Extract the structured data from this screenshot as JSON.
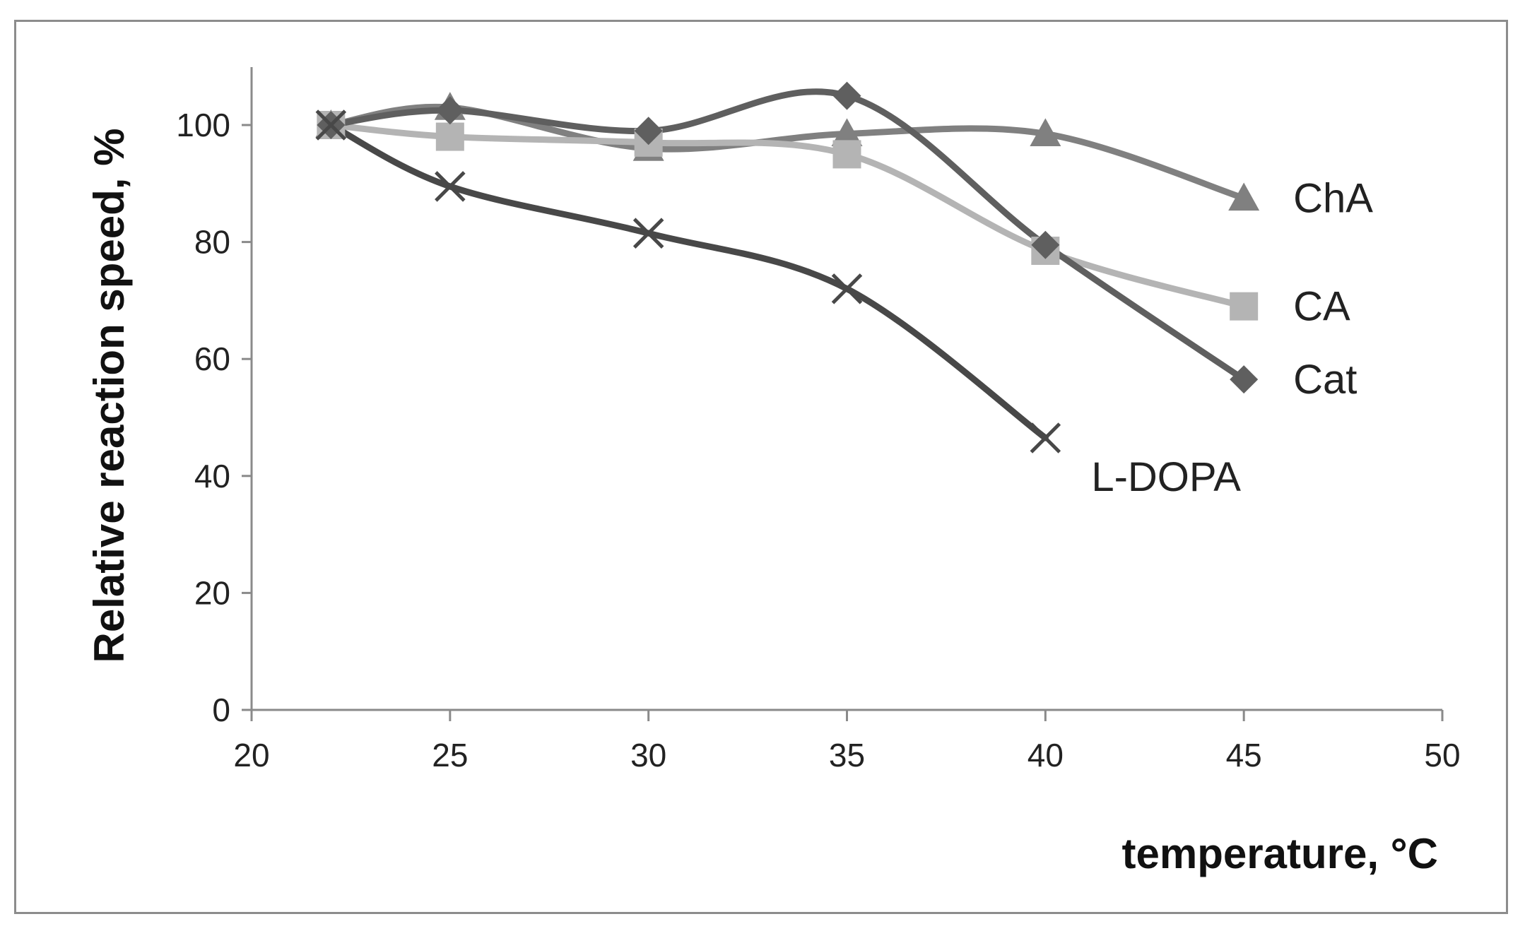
{
  "chart_data": {
    "type": "line",
    "title": "",
    "xlabel": "temperature, °C",
    "ylabel": "Relative reaction speed, %",
    "xlim": [
      20,
      50
    ],
    "ylim": [
      0,
      110
    ],
    "x_ticks": [
      20,
      25,
      30,
      35,
      40,
      45,
      50
    ],
    "y_ticks": [
      0,
      20,
      40,
      60,
      80,
      100
    ],
    "grid": false,
    "legend": "direct labels at line ends",
    "series": [
      {
        "name": "ChA",
        "color": "#808080",
        "marker": "triangle",
        "x": [
          22,
          25,
          30,
          35,
          40,
          45
        ],
        "y": [
          100,
          103,
          96,
          98.5,
          98.5,
          87.5
        ]
      },
      {
        "name": "CA",
        "color": "#b4b4b4",
        "marker": "square",
        "x": [
          22,
          25,
          30,
          35,
          40,
          45
        ],
        "y": [
          100,
          98,
          97,
          95,
          78.5,
          69
        ]
      },
      {
        "name": "Cat",
        "color": "#5f5f5f",
        "marker": "diamond",
        "x": [
          22,
          25,
          30,
          35,
          40,
          45
        ],
        "y": [
          100,
          102.5,
          99,
          105,
          79.5,
          56.5
        ]
      },
      {
        "name": "L-DOPA",
        "color": "#484848",
        "marker": "x",
        "x": [
          22,
          25,
          30,
          35,
          40
        ],
        "y": [
          100,
          89.5,
          81.5,
          72,
          46.5
        ]
      }
    ]
  }
}
